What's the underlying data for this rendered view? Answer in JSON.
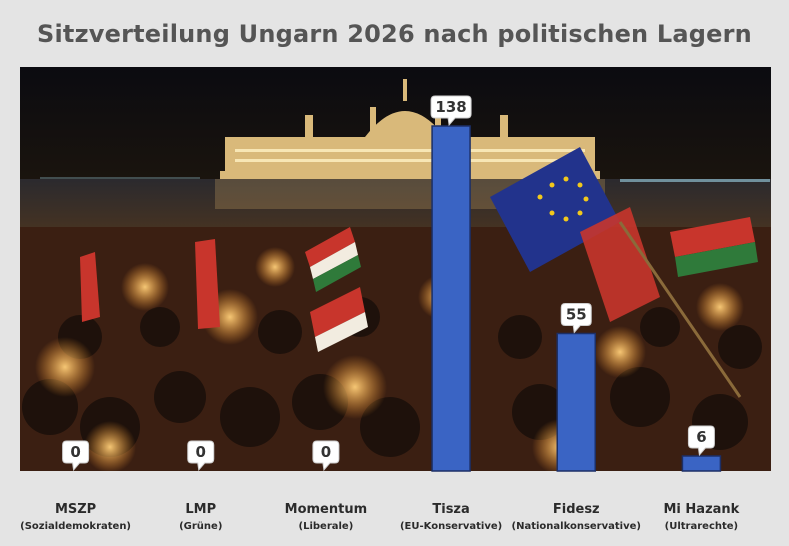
{
  "chart_data": {
    "type": "bar",
    "title": "Sitzverteilung Ungarn 2026 nach politischen Lagern",
    "categories": [
      "MSZP",
      "LMP",
      "Momentum",
      "Tisza",
      "Fidesz",
      "Mi Hazank"
    ],
    "subcategories": [
      "(Sozialdemokraten)",
      "(Grüne)",
      "(Liberale)",
      "(EU-Konservative)",
      "(Nationalkonservative)",
      "(Ultrarechte)"
    ],
    "values": [
      0,
      0,
      0,
      138,
      55,
      6
    ],
    "ylim": [
      0,
      144
    ],
    "xlabel": "",
    "ylabel": "",
    "grid": false,
    "bar_color": "#3a64c4",
    "background": "photograph of a night candlelight demonstration with Hungarian and EU flags in front of the Budapest Parliament"
  }
}
